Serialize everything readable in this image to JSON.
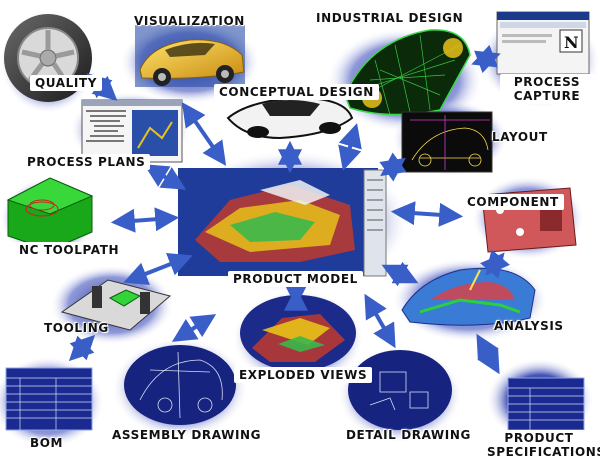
{
  "nodes": {
    "visualization": "VISUALIZATION",
    "industrial_design": "INDUSTRIAL DESIGN",
    "quality": "QUALITY",
    "conceptual_design": "CONCEPTUAL DESIGN",
    "process_capture_1": "PROCESS",
    "process_capture_2": "CAPTURE",
    "layout": "LAYOUT",
    "process_plans": "PROCESS PLANS",
    "component": "COMPONENT",
    "nc_toolpath": "NC TOOLPATH",
    "product_model": "PRODUCT MODEL",
    "tooling": "TOOLING",
    "analysis": "ANALYSIS",
    "exploded_views": "EXPLODED VIEWS",
    "bom": "BOM",
    "assembly_drawing": "ASSEMBLY DRAWING",
    "detail_drawing": "DETAIL DRAWING",
    "product_specifications_1": "PRODUCT",
    "product_specifications_2": "SPECIFICATIONS"
  },
  "colors": {
    "arrow": "#3a5ec8",
    "arrow_dark": "#1c2f8a",
    "glow": "#1d2a8f",
    "accent_green": "#22b81c",
    "accent_yellow": "#e8c21a"
  }
}
